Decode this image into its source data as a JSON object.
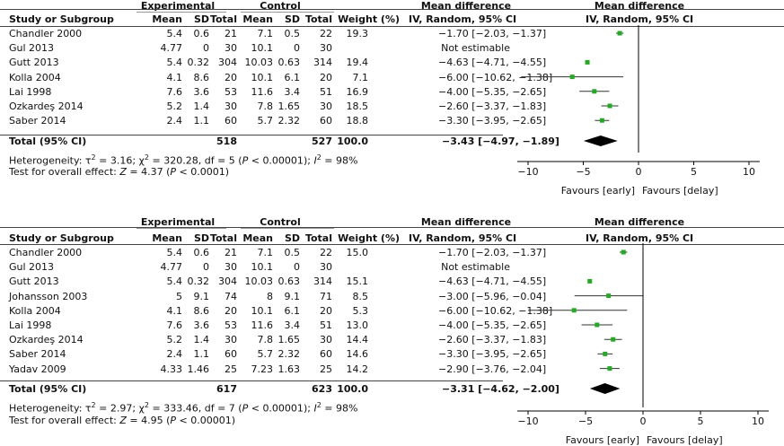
{
  "headers": {
    "study": "Study or Subgroup",
    "experimental": "Experimental",
    "control": "Control",
    "mean": "Mean",
    "sd": "SD",
    "total": "Total",
    "weight": "Weight (%)",
    "md1": "Mean difference",
    "md2": "IV, Random, 95% CI",
    "plot_md1": "Mean difference",
    "plot_md2": "IV, Random, 95% CI"
  },
  "total_label": "Total (95% CI)",
  "favours_left": "Favours [early]",
  "favours_right": "Favours [delay]",
  "overall_prefix": "Test for overall effect: ",
  "colors": {
    "point": "#22aa22",
    "diamond": "#000000",
    "zero_line": "#000000"
  },
  "chart_data": [
    {
      "type": "forest",
      "xlim": [
        -10,
        10
      ],
      "xticks": [
        -10,
        -5,
        0,
        5,
        10
      ],
      "xtick_labels": [
        "−10",
        "−5",
        "0",
        "5",
        "10"
      ],
      "studies": [
        {
          "name": "Chandler 2000",
          "e_mean": "5.4",
          "e_sd": "0.6",
          "e_total": "21",
          "c_mean": "7.1",
          "c_sd": "0.5",
          "c_total": "22",
          "weight": "19.3",
          "ci_text": "−1.70 [−2.03, −1.37]",
          "md": -1.7,
          "lo": -2.03,
          "hi": -1.37
        },
        {
          "name": "Gul 2013",
          "e_mean": "4.77",
          "e_sd": "0",
          "e_total": "30",
          "c_mean": "10.1",
          "c_sd": "0",
          "c_total": "30",
          "weight": "",
          "ci_text": "Not estimable",
          "md": null,
          "lo": null,
          "hi": null
        },
        {
          "name": "Gutt 2013",
          "e_mean": "5.4",
          "e_sd": "0.32",
          "e_total": "304",
          "c_mean": "10.03",
          "c_sd": "0.63",
          "c_total": "314",
          "weight": "19.4",
          "ci_text": "−4.63 [−4.71, −4.55]",
          "md": -4.63,
          "lo": -4.71,
          "hi": -4.55
        },
        {
          "name": "Kolla 2004",
          "e_mean": "4.1",
          "e_sd": "8.6",
          "e_total": "20",
          "c_mean": "10.1",
          "c_sd": "6.1",
          "c_total": "20",
          "weight": "7.1",
          "ci_text": "−6.00 [−10.62, −1.38]",
          "md": -6.0,
          "lo": -10.62,
          "hi": -1.38
        },
        {
          "name": "Lai 1998",
          "e_mean": "7.6",
          "e_sd": "3.6",
          "e_total": "53",
          "c_mean": "11.6",
          "c_sd": "3.4",
          "c_total": "51",
          "weight": "16.9",
          "ci_text": "−4.00 [−5.35, −2.65]",
          "md": -4.0,
          "lo": -5.35,
          "hi": -2.65
        },
        {
          "name": "Ozkardeş 2014",
          "e_mean": "5.2",
          "e_sd": "1.4",
          "e_total": "30",
          "c_mean": "7.8",
          "c_sd": "1.65",
          "c_total": "30",
          "weight": "18.5",
          "ci_text": "−2.60 [−3.37, −1.83]",
          "md": -2.6,
          "lo": -3.37,
          "hi": -1.83
        },
        {
          "name": "Saber 2014",
          "e_mean": "2.4",
          "e_sd": "1.1",
          "e_total": "60",
          "c_mean": "5.7",
          "c_sd": "2.32",
          "c_total": "60",
          "weight": "18.8",
          "ci_text": "−3.30 [−3.95, −2.65]",
          "md": -3.3,
          "lo": -3.95,
          "hi": -2.65
        }
      ],
      "total": {
        "e_total": "518",
        "c_total": "527",
        "weight": "100.0",
        "ci_text": "−3.43 [−4.97, −1.89]",
        "md": -3.43,
        "lo": -4.97,
        "hi": -1.89
      },
      "heterogeneity": {
        "prefix": "Heterogeneity: ",
        "tau2": "3.16",
        "chi2": "320.28",
        "df": "5",
        "p": "0.00001",
        "i2": "98%"
      },
      "overall_effect": {
        "z": "4.37",
        "p": "0.0001"
      }
    },
    {
      "type": "forest",
      "xlim": [
        -10,
        10
      ],
      "xticks": [
        -10,
        -5,
        0,
        5,
        10
      ],
      "xtick_labels": [
        "−10",
        "−5",
        "0",
        "5",
        "10"
      ],
      "studies": [
        {
          "name": "Chandler 2000",
          "e_mean": "5.4",
          "e_sd": "0.6",
          "e_total": "21",
          "c_mean": "7.1",
          "c_sd": "0.5",
          "c_total": "22",
          "weight": "15.0",
          "ci_text": "−1.70 [−2.03, −1.37]",
          "md": -1.7,
          "lo": -2.03,
          "hi": -1.37
        },
        {
          "name": "Gul 2013",
          "e_mean": "4.77",
          "e_sd": "0",
          "e_total": "30",
          "c_mean": "10.1",
          "c_sd": "0",
          "c_total": "30",
          "weight": "",
          "ci_text": "Not estimable",
          "md": null,
          "lo": null,
          "hi": null
        },
        {
          "name": "Gutt 2013",
          "e_mean": "5.4",
          "e_sd": "0.32",
          "e_total": "304",
          "c_mean": "10.03",
          "c_sd": "0.63",
          "c_total": "314",
          "weight": "15.1",
          "ci_text": "−4.63 [−4.71, −4.55]",
          "md": -4.63,
          "lo": -4.71,
          "hi": -4.55
        },
        {
          "name": "Johansson 2003",
          "e_mean": "5",
          "e_sd": "9.1",
          "e_total": "74",
          "c_mean": "8",
          "c_sd": "9.1",
          "c_total": "71",
          "weight": "8.5",
          "ci_text": "−3.00 [−5.96, −0.04]",
          "md": -3.0,
          "lo": -5.96,
          "hi": -0.04
        },
        {
          "name": "Kolla 2004",
          "e_mean": "4.1",
          "e_sd": "8.6",
          "e_total": "20",
          "c_mean": "10.1",
          "c_sd": "6.1",
          "c_total": "20",
          "weight": "5.3",
          "ci_text": "−6.00 [−10.62, −1.38]",
          "md": -6.0,
          "lo": -10.62,
          "hi": -1.38
        },
        {
          "name": "Lai 1998",
          "e_mean": "7.6",
          "e_sd": "3.6",
          "e_total": "53",
          "c_mean": "11.6",
          "c_sd": "3.4",
          "c_total": "51",
          "weight": "13.0",
          "ci_text": "−4.00 [−5.35, −2.65]",
          "md": -4.0,
          "lo": -5.35,
          "hi": -2.65
        },
        {
          "name": "Ozkardeş 2014",
          "e_mean": "5.2",
          "e_sd": "1.4",
          "e_total": "30",
          "c_mean": "7.8",
          "c_sd": "1.65",
          "c_total": "30",
          "weight": "14.4",
          "ci_text": "−2.60 [−3.37, −1.83]",
          "md": -2.6,
          "lo": -3.37,
          "hi": -1.83
        },
        {
          "name": "Saber 2014",
          "e_mean": "2.4",
          "e_sd": "1.1",
          "e_total": "60",
          "c_mean": "5.7",
          "c_sd": "2.32",
          "c_total": "60",
          "weight": "14.6",
          "ci_text": "−3.30 [−3.95, −2.65]",
          "md": -3.3,
          "lo": -3.95,
          "hi": -2.65
        },
        {
          "name": "Yadav 2009",
          "e_mean": "4.33",
          "e_sd": "1.46",
          "e_total": "25",
          "c_mean": "7.23",
          "c_sd": "1.63",
          "c_total": "25",
          "weight": "14.2",
          "ci_text": "−2.90 [−3.76, −2.04]",
          "md": -2.9,
          "lo": -3.76,
          "hi": -2.04
        }
      ],
      "total": {
        "e_total": "617",
        "c_total": "623",
        "weight": "100.0",
        "ci_text": "−3.31 [−4.62, −2.00]",
        "md": -3.31,
        "lo": -4.62,
        "hi": -2.0
      },
      "heterogeneity": {
        "prefix": "Heterogeneity: ",
        "tau2": "2.97",
        "chi2": "333.46",
        "df": "7",
        "p": "0.00001",
        "i2": "98%"
      },
      "overall_effect": {
        "z": "4.95",
        "p": "0.00001"
      }
    }
  ]
}
